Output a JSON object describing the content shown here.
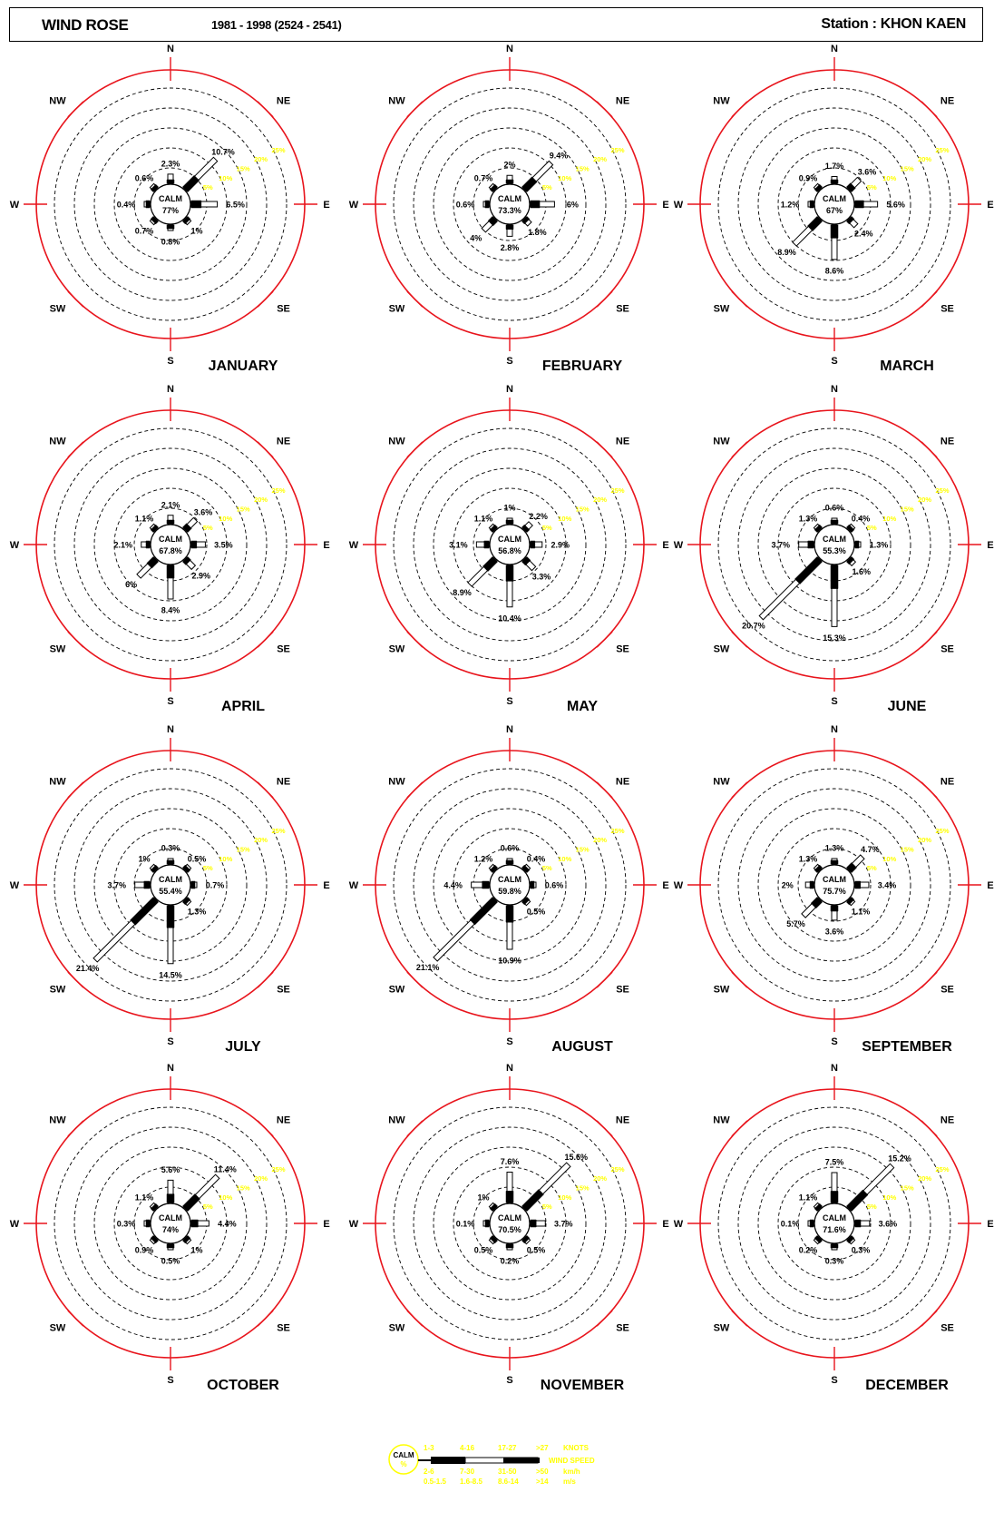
{
  "header": {
    "title": "WIND ROSE",
    "period": "1981 - 1998 (2524 - 2541)",
    "station": "Station :   KHON KAEN"
  },
  "directions": [
    "N",
    "NE",
    "E",
    "SE",
    "S",
    "SW",
    "W",
    "NW"
  ],
  "center_label": "CALM",
  "ring_labels": [
    "5%",
    "10%",
    "15%",
    "20%",
    "25%"
  ],
  "colors": {
    "ring": "#e8141c",
    "grid": "#000000",
    "scale": "#ffff00",
    "ink": "#000000"
  },
  "chart_data": [
    {
      "type": "windrose",
      "month": "JANUARY",
      "calm": "77%",
      "labels": [
        "2.3%",
        "10.7%",
        "6.5%",
        "1%",
        "0.8%",
        "0.7%",
        "0.4%",
        "0.6%"
      ],
      "values": [
        2.3,
        10.7,
        6.5,
        1,
        0.8,
        0.7,
        0.4,
        0.6
      ]
    },
    {
      "type": "windrose",
      "month": "FEBRUARY",
      "calm": "73.3%",
      "labels": [
        "2%",
        "9.4%",
        "6%",
        "1.8%",
        "2.8%",
        "4%",
        "0.6%",
        "0.7%"
      ],
      "values": [
        2,
        9.4,
        6,
        1.8,
        2.8,
        4,
        0.6,
        0.7
      ]
    },
    {
      "type": "windrose",
      "month": "MARCH",
      "calm": "67%",
      "labels": [
        "1.7%",
        "3.6%",
        "5.6%",
        "2.4%",
        "8.6%",
        "8.9%",
        "1.2%",
        "0.9%"
      ],
      "values": [
        1.7,
        3.6,
        5.6,
        2.4,
        8.6,
        8.9,
        1.2,
        0.9
      ]
    },
    {
      "type": "windrose",
      "month": "APRIL",
      "calm": "67.8%",
      "labels": [
        "2.1%",
        "3.6%",
        "3.5%",
        "2.9%",
        "8.4%",
        "6%",
        "2.1%",
        "1.1%"
      ],
      "values": [
        2.1,
        3.6,
        3.5,
        2.9,
        8.4,
        6,
        2.1,
        1.1
      ]
    },
    {
      "type": "windrose",
      "month": "MAY",
      "calm": "56.8%",
      "labels": [
        "1%",
        "2.2%",
        "2.9%",
        "3.3%",
        "10.4%",
        "8.9%",
        "3.1%",
        "1.1%"
      ],
      "values": [
        1,
        2.2,
        2.9,
        3.3,
        10.4,
        8.9,
        3.1,
        1.1
      ]
    },
    {
      "type": "windrose",
      "month": "JUNE",
      "calm": "55.3%",
      "labels": [
        "0.6%",
        "0.4%",
        "1.3%",
        "1.6%",
        "15.3%",
        "20.7%",
        "3.7%",
        "1.3%"
      ],
      "values": [
        0.6,
        0.4,
        1.3,
        1.6,
        15.3,
        20.7,
        3.7,
        1.3
      ]
    },
    {
      "type": "windrose",
      "month": "JULY",
      "calm": "55.4%",
      "labels": [
        "0.3%",
        "0.5%",
        "0.7%",
        "1.3%",
        "14.5%",
        "21.4%",
        "3.7%",
        "1%"
      ],
      "values": [
        0.3,
        0.5,
        0.7,
        1.3,
        14.5,
        21.4,
        3.7,
        1
      ]
    },
    {
      "type": "windrose",
      "month": "AUGUST",
      "calm": "59.8%",
      "labels": [
        "0.6%",
        "0.4%",
        "0.6%",
        "0.5%",
        "10.9%",
        "21.1%",
        "4.4%",
        "1.2%"
      ],
      "values": [
        0.6,
        0.4,
        0.6,
        0.5,
        10.9,
        21.1,
        4.4,
        1.2
      ]
    },
    {
      "type": "windrose",
      "month": "SEPTEMBER",
      "calm": "75.7%",
      "labels": [
        "1.3%",
        "4.7%",
        "3.4%",
        "1.1%",
        "3.6%",
        "5.7%",
        "2%",
        "1.3%"
      ],
      "values": [
        1.3,
        4.7,
        3.4,
        1.1,
        3.6,
        5.7,
        2,
        1.3
      ]
    },
    {
      "type": "windrose",
      "month": "OCTOBER",
      "calm": "74%",
      "labels": [
        "5.6%",
        "11.4%",
        "4.4%",
        "1%",
        "0.5%",
        "0.9%",
        "0.3%",
        "1.1%"
      ],
      "values": [
        5.6,
        11.4,
        4.4,
        1,
        0.5,
        0.9,
        0.3,
        1.1
      ]
    },
    {
      "type": "windrose",
      "month": "NOVEMBER",
      "calm": "70.5%",
      "labels": [
        "7.6%",
        "15.6%",
        "3.7%",
        "0.5%",
        "0.2%",
        "0.5%",
        "0.1%",
        "1%"
      ],
      "values": [
        7.6,
        15.6,
        3.7,
        0.5,
        0.2,
        0.5,
        0.1,
        1
      ]
    },
    {
      "type": "windrose",
      "month": "DECEMBER",
      "calm": "71.6%",
      "labels": [
        "7.5%",
        "15.2%",
        "3.6%",
        "0.3%",
        "0.3%",
        "0.2%",
        "0.1%",
        "1.1%"
      ],
      "values": [
        7.5,
        15.2,
        3.6,
        0.3,
        0.3,
        0.2,
        0.1,
        1.1
      ]
    }
  ],
  "legend": {
    "calm_label": "CALM",
    "calm_value": "%",
    "row1": [
      "1-3",
      "4-16",
      "17-27",
      ">27",
      "KNOTS"
    ],
    "row2": [
      "2-6",
      "7-30",
      "31-50",
      ">50",
      "km/h"
    ],
    "row3": [
      "0.5-1.5",
      "1.6-8.5",
      "8.6-14",
      ">14",
      "m/s"
    ],
    "speed_label": "WIND SPEED"
  }
}
